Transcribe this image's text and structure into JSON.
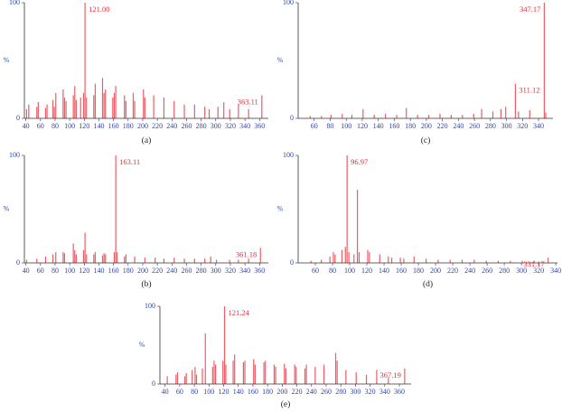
{
  "chart_data": [
    {
      "type": "bar",
      "caption": "(a)",
      "ylabel": "%",
      "color": "#ee5c66",
      "x": [
        41,
        44,
        55,
        57,
        67,
        69,
        77,
        79,
        81,
        91,
        93,
        95,
        105,
        107,
        109,
        115,
        119,
        121.0,
        123,
        133,
        135,
        145,
        147,
        149,
        159,
        161,
        163,
        175,
        177,
        187,
        189,
        201,
        203,
        215,
        229,
        243,
        257,
        271,
        285,
        291,
        303,
        311,
        319,
        331,
        345,
        363.11
      ],
      "values": [
        8,
        12,
        10,
        14,
        9,
        12,
        16,
        10,
        22,
        25,
        18,
        15,
        20,
        28,
        16,
        18,
        22,
        100,
        18,
        20,
        30,
        35,
        22,
        25,
        18,
        22,
        28,
        20,
        15,
        22,
        15,
        25,
        18,
        20,
        18,
        15,
        12,
        12,
        10,
        8,
        10,
        14,
        8,
        12,
        8,
        20
      ],
      "annotations": [
        {
          "x": 121.0,
          "text": "121.00"
        },
        {
          "x": 363.11,
          "text": "363.11"
        }
      ],
      "xlim": [
        38,
        372
      ],
      "xticks": [
        40,
        60,
        80,
        100,
        120,
        140,
        160,
        180,
        200,
        220,
        240,
        260,
        280,
        300,
        320,
        340,
        360
      ],
      "ylim": [
        0,
        100
      ],
      "yticks": [
        0,
        100
      ]
    },
    {
      "type": "bar",
      "caption": "(b)",
      "ylabel": "%",
      "color": "#ee5c66",
      "x": [
        41,
        55,
        67,
        77,
        81,
        91,
        93,
        105,
        107,
        109,
        119,
        121,
        123,
        133,
        135,
        145,
        147,
        149,
        161,
        163.11,
        165,
        175,
        177,
        189,
        203,
        217,
        229,
        243,
        257,
        271,
        285,
        293,
        301,
        319,
        331,
        345,
        361.18
      ],
      "values": [
        3,
        4,
        6,
        8,
        10,
        10,
        9,
        18,
        12,
        8,
        12,
        28,
        8,
        8,
        10,
        7,
        9,
        8,
        10,
        100,
        10,
        6,
        8,
        6,
        5,
        5,
        4,
        5,
        4,
        4,
        4,
        6,
        3,
        3,
        3,
        4,
        14
      ],
      "annotations": [
        {
          "x": 163.11,
          "text": "163.11"
        },
        {
          "x": 361.18,
          "text": "361.18"
        }
      ],
      "xlim": [
        38,
        372
      ],
      "xticks": [
        40,
        60,
        80,
        100,
        120,
        140,
        160,
        180,
        200,
        220,
        240,
        260,
        280,
        300,
        320,
        340,
        360
      ],
      "ylim": [
        0,
        100
      ],
      "yticks": [
        0,
        100
      ]
    },
    {
      "type": "bar",
      "caption": "(c)",
      "ylabel": "%",
      "color": "#ee5c66",
      "x": [
        55,
        69,
        81,
        95,
        107,
        121,
        135,
        149,
        163,
        175,
        189,
        203,
        217,
        231,
        245,
        259,
        269,
        283,
        293,
        299,
        311.12,
        315,
        329,
        347.17,
        349
      ],
      "values": [
        2,
        2,
        3,
        4,
        3,
        8,
        3,
        4,
        3,
        9,
        3,
        3,
        4,
        3,
        3,
        4,
        8,
        6,
        8,
        10,
        30,
        6,
        7,
        100,
        5
      ],
      "annotations": [
        {
          "x": 311.12,
          "text": "311.12"
        },
        {
          "x": 347.17,
          "text": "347.17"
        }
      ],
      "xlim": [
        40,
        358
      ],
      "xticks": [
        60,
        80,
        100,
        120,
        140,
        160,
        180,
        200,
        220,
        240,
        260,
        280,
        300,
        320,
        340
      ],
      "ylim": [
        0,
        100
      ],
      "yticks": [
        0,
        100
      ]
    },
    {
      "type": "bar",
      "caption": "(d)",
      "ylabel": "%",
      "color": "#ee5c66",
      "x": [
        55,
        67,
        77,
        81,
        83,
        91,
        95,
        96.97,
        99,
        105,
        109,
        111,
        121,
        123,
        135,
        145,
        149,
        159,
        163,
        175,
        189,
        203,
        217,
        231,
        245,
        259,
        273,
        287,
        301,
        315,
        331.17
      ],
      "values": [
        2,
        3,
        6,
        10,
        8,
        12,
        15,
        100,
        10,
        8,
        68,
        10,
        12,
        10,
        8,
        6,
        5,
        5,
        4,
        6,
        4,
        3,
        3,
        3,
        3,
        2,
        2,
        2,
        2,
        2,
        5
      ],
      "annotations": [
        {
          "x": 96.97,
          "text": "96.97"
        },
        {
          "x": 331.17,
          "text": "331.17"
        }
      ],
      "xlim": [
        40,
        342
      ],
      "xticks": [
        60,
        80,
        100,
        120,
        140,
        160,
        180,
        200,
        220,
        240,
        260,
        280,
        300,
        320,
        340
      ],
      "ylim": [
        0,
        100
      ],
      "yticks": [
        0,
        100
      ]
    },
    {
      "type": "bar",
      "caption": "(e)",
      "ylabel": "%",
      "color": "#ee5c66",
      "x": [
        43,
        55,
        57,
        67,
        69,
        77,
        81,
        83,
        91,
        95,
        105,
        107,
        109,
        119,
        121.24,
        123,
        133,
        135,
        147,
        149,
        161,
        163,
        175,
        177,
        189,
        191,
        203,
        205,
        217,
        219,
        231,
        233,
        245,
        257,
        273,
        275,
        287,
        301,
        315,
        329,
        345,
        367.19
      ],
      "values": [
        10,
        12,
        15,
        10,
        14,
        18,
        22,
        12,
        20,
        65,
        22,
        30,
        25,
        30,
        100,
        25,
        30,
        38,
        28,
        30,
        32,
        25,
        28,
        30,
        25,
        22,
        26,
        20,
        25,
        22,
        20,
        25,
        22,
        25,
        40,
        30,
        18,
        15,
        12,
        18,
        8,
        20
      ],
      "annotations": [
        {
          "x": 121.24,
          "text": "121.24"
        },
        {
          "x": 367.19,
          "text": "367.19"
        }
      ],
      "xlim": [
        33,
        376
      ],
      "xticks": [
        40,
        60,
        80,
        100,
        120,
        140,
        160,
        180,
        200,
        220,
        240,
        260,
        280,
        300,
        320,
        340,
        360
      ],
      "ylim": [
        0,
        100
      ],
      "yticks": [
        0,
        100
      ]
    }
  ]
}
